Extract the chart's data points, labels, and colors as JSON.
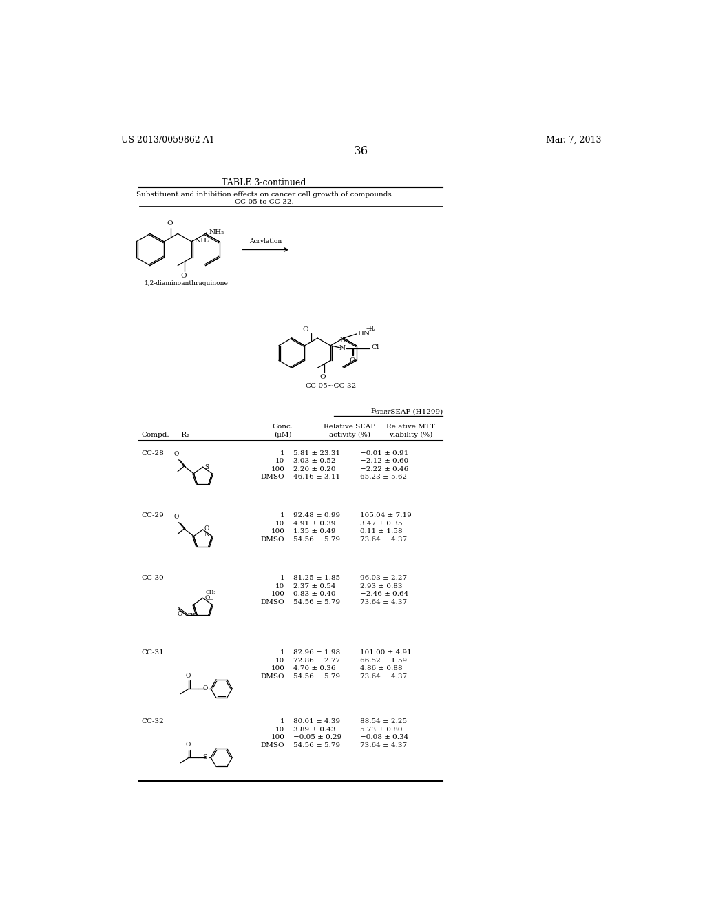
{
  "bg_color": "#ffffff",
  "patent_number": "US 2013/0059862 A1",
  "patent_date": "Mar. 7, 2013",
  "page_number": "36",
  "table_title": "TABLE 3-continued",
  "table_subtitle1": "Substituent and inhibition effects on cancer cell growth of compounds",
  "table_subtitle2": "CC-05 to CC-32.",
  "reaction_label": "Acrylation",
  "starting_material_label": "1,2-diaminoanthraquinone",
  "product_label": "CC-05~CC-32",
  "compounds": [
    {
      "name": "CC-28",
      "conc": [
        "1",
        "10",
        "100",
        "DMSO"
      ],
      "seap": [
        "5.81 ± 23.31",
        "3.03 ± 0.52",
        "2.20 ± 0.20",
        "46.16 ± 3.11"
      ],
      "mtt": [
        "−0.01 ± 0.91",
        "−2.12 ± 0.60",
        "−2.22 ± 0.46",
        "65.23 ± 5.62"
      ]
    },
    {
      "name": "CC-29",
      "conc": [
        "1",
        "10",
        "100",
        "DMSO"
      ],
      "seap": [
        "92.48 ± 0.99",
        "4.91 ± 0.39",
        "1.35 ± 0.49",
        "54.56 ± 5.79"
      ],
      "mtt": [
        "105.04 ± 7.19",
        "3.47 ± 0.35",
        "0.11 ± 1.58",
        "73.64 ± 4.37"
      ]
    },
    {
      "name": "CC-30",
      "conc": [
        "1",
        "10",
        "100",
        "DMSO"
      ],
      "seap": [
        "81.25 ± 1.85",
        "2.37 ± 0.54",
        "0.83 ± 0.40",
        "54.56 ± 5.79"
      ],
      "mtt": [
        "96.03 ± 2.27",
        "2.93 ± 0.83",
        "−2.46 ± 0.64",
        "73.64 ± 4.37"
      ]
    },
    {
      "name": "CC-31",
      "conc": [
        "1",
        "10",
        "100",
        "DMSO"
      ],
      "seap": [
        "82.96 ± 1.98",
        "72.86 ± 2.77",
        "4.70 ± 0.36",
        "54.56 ± 5.79"
      ],
      "mtt": [
        "101.00 ± 4.91",
        "66.52 ± 1.59",
        "4.86 ± 0.88",
        "73.64 ± 4.37"
      ]
    },
    {
      "name": "CC-32",
      "conc": [
        "1",
        "10",
        "100",
        "DMSO"
      ],
      "seap": [
        "80.01 ± 4.39",
        "3.89 ± 0.43",
        "−0.05 ± 0.29",
        "54.56 ± 5.79"
      ],
      "mtt": [
        "88.54 ± 2.25",
        "5.73 ± 0.80",
        "−0.08 ± 0.34",
        "73.64 ± 4.37"
      ]
    }
  ]
}
